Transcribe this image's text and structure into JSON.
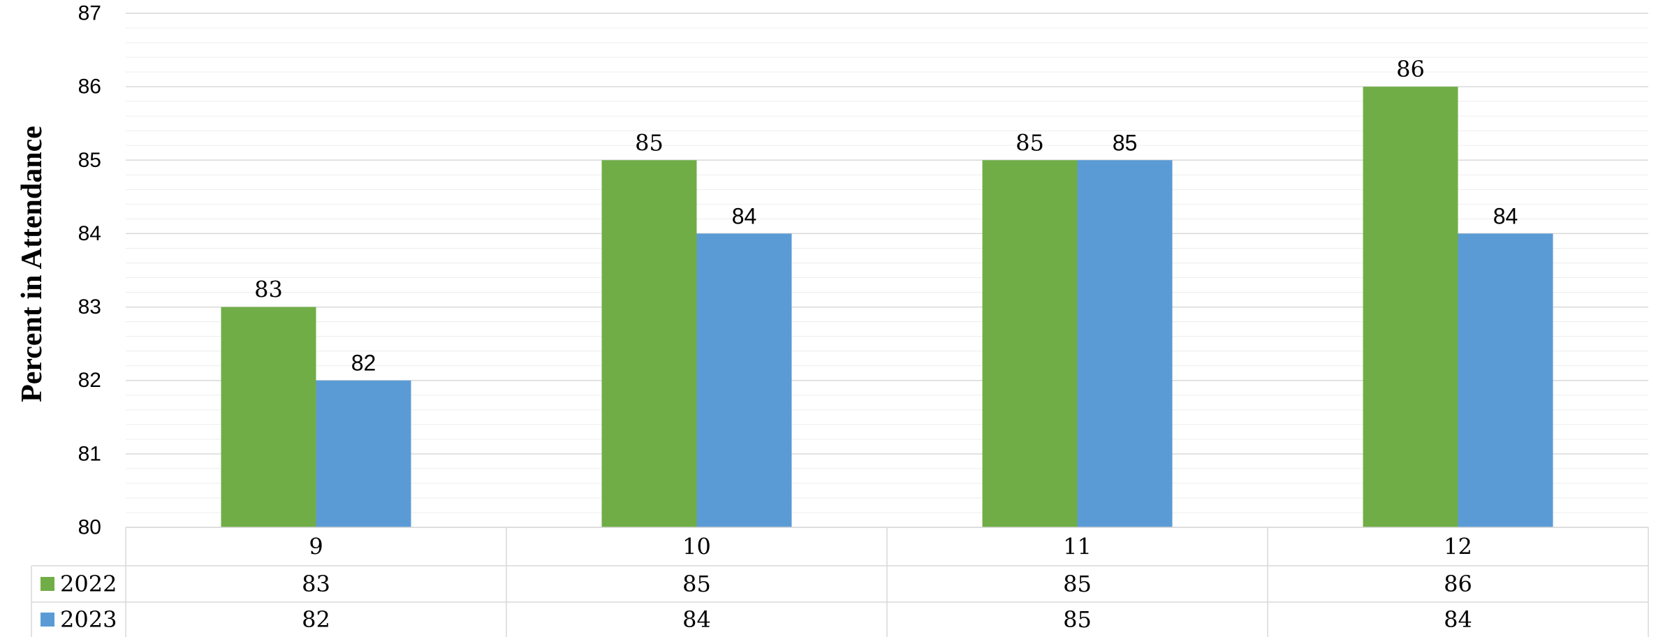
{
  "chart_data": {
    "type": "bar",
    "title": "",
    "xlabel": "",
    "ylabel": "Percent in Attendance",
    "categories": [
      "9",
      "10",
      "11",
      "12"
    ],
    "series": [
      {
        "name": "2022",
        "values": [
          83,
          85,
          85,
          86
        ],
        "color": "#70ad47"
      },
      {
        "name": "2023",
        "values": [
          82,
          84,
          85,
          84
        ],
        "color": "#5b9bd5"
      }
    ],
    "ylim": [
      80,
      87
    ],
    "yticks": [
      "80",
      "81",
      "82",
      "83",
      "84",
      "85",
      "86",
      "87"
    ],
    "grid": true,
    "data_table": true,
    "legend": "data-table"
  }
}
